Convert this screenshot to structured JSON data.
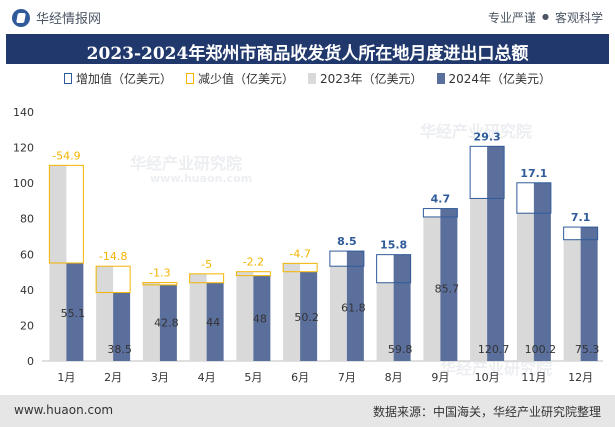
{
  "header": {
    "site_name": "华经情报网",
    "tagline_left": "专业严谨",
    "tagline_sep": "●",
    "tagline_right": "客观科学"
  },
  "chart_data": {
    "type": "bar",
    "title": "2023-2024年郑州市商品收发货人所在地月度进出口总额",
    "categories": [
      "1月",
      "2月",
      "3月",
      "4月",
      "5月",
      "6月",
      "7月",
      "8月",
      "9月",
      "10月",
      "11月",
      "12月"
    ],
    "series": [
      {
        "name": "2023年（亿美元）",
        "values": [
          110,
          53.3,
          44.1,
          49,
          50.2,
          54.9,
          53.3,
          44,
          81,
          91.4,
          83.1,
          68.2
        ]
      },
      {
        "name": "2024年（亿美元）",
        "values": [
          55.1,
          38.5,
          42.8,
          44,
          48,
          50.2,
          61.8,
          59.8,
          85.7,
          120.7,
          100.2,
          75.3
        ]
      }
    ],
    "change": {
      "increase_label": "增加值（亿美元）",
      "decrease_label": "减少值（亿美元）",
      "values": [
        -54.9,
        -14.8,
        -1.3,
        -5,
        -2.2,
        -4.7,
        8.5,
        15.8,
        4.7,
        29.3,
        17.1,
        7.1
      ],
      "labels": [
        "-54.9",
        "-14.8",
        "-1.3",
        "-5",
        "-2.2",
        "-4.7",
        "8.5",
        "15.8",
        "4.7",
        "29.3",
        "17.1",
        "7.1"
      ]
    },
    "value_labels_2024": [
      "55.1",
      "38.5",
      "42.8",
      "44",
      "48",
      "50.2",
      "61.8",
      "59.8",
      "85.7",
      "120.7",
      "100.2",
      "75.3"
    ],
    "ylim": [
      0,
      140
    ],
    "yticks": [
      0,
      20,
      40,
      60,
      80,
      100,
      120,
      140
    ],
    "colors": {
      "bar_2023": "#d9d9d9",
      "bar_2024": "#5b6f9d",
      "increase": "#2f5b9a",
      "decrease": "#f4b400",
      "axis": "#bfbfbf"
    },
    "legend_position": "top-center",
    "grid": false
  },
  "footer": {
    "website": "www.huaon.com",
    "source": "数据来源：中国海关，华经产业研究院整理"
  },
  "watermarks": [
    "华经产业研究院",
    "www.huaon.com"
  ]
}
